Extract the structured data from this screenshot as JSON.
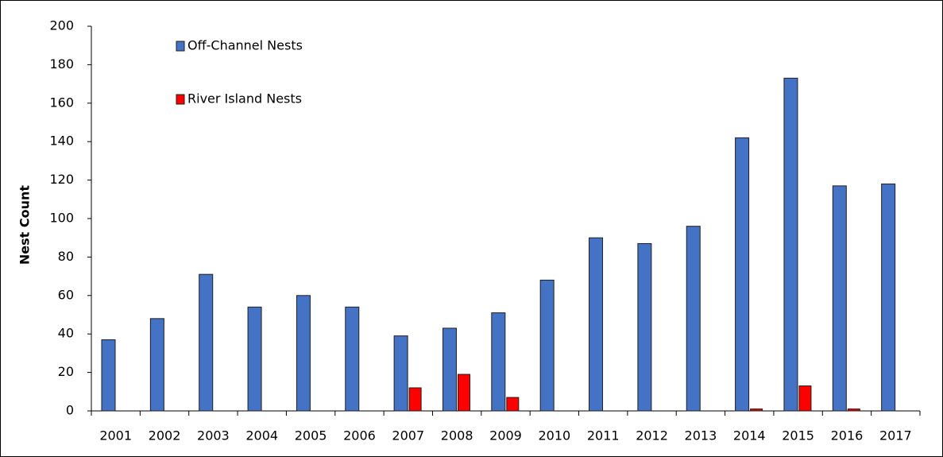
{
  "chart_data": {
    "type": "bar",
    "y_label": "Nest Count",
    "categories": [
      "2001",
      "2002",
      "2003",
      "2004",
      "2005",
      "2006",
      "2007",
      "2008",
      "2009",
      "2010",
      "2011",
      "2012",
      "2013",
      "2014",
      "2015",
      "2016",
      "2017"
    ],
    "series": [
      {
        "name": "Off-Channel Nests",
        "color": "#4472c4",
        "values": [
          37,
          48,
          71,
          54,
          60,
          54,
          39,
          43,
          51,
          68,
          90,
          87,
          96,
          142,
          173,
          117,
          118
        ]
      },
      {
        "name": "River Island Nests",
        "color": "#ff0000",
        "values": [
          0,
          0,
          0,
          0,
          0,
          0,
          12,
          19,
          7,
          0,
          0,
          0,
          0,
          1,
          13,
          1,
          0
        ]
      }
    ],
    "ylim": [
      0,
      200
    ],
    "yticks": [
      0,
      20,
      40,
      60,
      80,
      100,
      120,
      140,
      160,
      180,
      200
    ],
    "grid": false,
    "legend": "top-left"
  }
}
